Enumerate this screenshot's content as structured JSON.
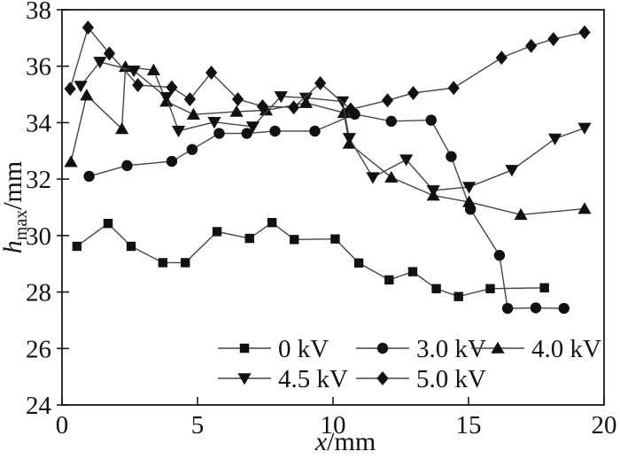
{
  "figure": {
    "background": "#ffffff",
    "axis_color": "#1a1a1a",
    "marker_color": "#111111",
    "line_color": "#444444"
  },
  "chart_data": {
    "type": "line",
    "title": "",
    "xlabel_variable": "x",
    "xlabel_unit": "/mm",
    "ylabel_variable": "h",
    "ylabel_subscript": "max",
    "ylabel_unit": "/mm",
    "xlim": [
      0,
      20
    ],
    "ylim": [
      24,
      38
    ],
    "x_ticks": [
      0,
      5,
      10,
      15,
      20
    ],
    "y_ticks": [
      24,
      26,
      28,
      30,
      32,
      34,
      36,
      38
    ],
    "grid": false,
    "legend_position": "inside lower center, two rows",
    "series": [
      {
        "name": "0 kV",
        "marker": "square",
        "points": [
          [
            0.55,
            29.62
          ],
          [
            1.7,
            30.43
          ],
          [
            2.55,
            29.62
          ],
          [
            3.72,
            29.04
          ],
          [
            4.55,
            29.04
          ],
          [
            5.72,
            30.14
          ],
          [
            6.92,
            29.9
          ],
          [
            7.75,
            30.46
          ],
          [
            8.57,
            29.86
          ],
          [
            10.08,
            29.88
          ],
          [
            10.95,
            29.03
          ],
          [
            12.07,
            28.43
          ],
          [
            12.94,
            28.72
          ],
          [
            13.81,
            28.12
          ],
          [
            14.63,
            27.84
          ],
          [
            15.8,
            28.12
          ],
          [
            17.8,
            28.15
          ]
        ]
      },
      {
        "name": "3.0 kV",
        "marker": "circle",
        "points": [
          [
            1.0,
            32.1
          ],
          [
            2.4,
            32.48
          ],
          [
            4.05,
            32.63
          ],
          [
            4.8,
            33.05
          ],
          [
            5.8,
            33.62
          ],
          [
            6.82,
            33.62
          ],
          [
            7.86,
            33.7
          ],
          [
            9.33,
            33.7
          ],
          [
            10.8,
            34.3
          ],
          [
            12.15,
            34.05
          ],
          [
            13.62,
            34.09
          ],
          [
            14.36,
            32.8
          ],
          [
            15.07,
            30.93
          ],
          [
            16.14,
            29.3
          ],
          [
            16.44,
            27.42
          ],
          [
            17.48,
            27.44
          ],
          [
            18.52,
            27.42
          ]
        ]
      },
      {
        "name": "4.0 kV",
        "marker": "triangle-up",
        "points": [
          [
            0.33,
            32.61
          ],
          [
            0.91,
            34.97
          ],
          [
            2.21,
            33.78
          ],
          [
            2.34,
            35.98
          ],
          [
            3.38,
            35.86
          ],
          [
            3.85,
            34.75
          ],
          [
            4.85,
            34.29
          ],
          [
            6.44,
            34.39
          ],
          [
            7.53,
            34.44
          ],
          [
            9.0,
            34.7
          ],
          [
            10.4,
            34.35
          ],
          [
            10.6,
            33.26
          ],
          [
            12.15,
            32.06
          ],
          [
            13.7,
            31.42
          ],
          [
            15.02,
            31.19
          ],
          [
            16.93,
            30.74
          ],
          [
            19.28,
            30.95
          ]
        ]
      },
      {
        "name": "4.5 kV",
        "marker": "triangle-down",
        "points": [
          [
            0.69,
            35.3
          ],
          [
            1.4,
            36.15
          ],
          [
            2.65,
            35.84
          ],
          [
            3.85,
            34.9
          ],
          [
            4.3,
            33.71
          ],
          [
            5.62,
            34.02
          ],
          [
            7.04,
            33.86
          ],
          [
            8.08,
            34.93
          ],
          [
            9.0,
            34.88
          ],
          [
            10.35,
            34.75
          ],
          [
            10.6,
            33.45
          ],
          [
            11.47,
            32.06
          ],
          [
            12.7,
            32.69
          ],
          [
            13.7,
            31.6
          ],
          [
            15.02,
            31.72
          ],
          [
            16.6,
            32.32
          ],
          [
            18.19,
            33.43
          ],
          [
            19.28,
            33.81
          ]
        ]
      },
      {
        "name": "5.0 kV",
        "marker": "diamond",
        "points": [
          [
            0.3,
            35.2
          ],
          [
            0.96,
            37.37
          ],
          [
            1.75,
            36.45
          ],
          [
            2.8,
            35.33
          ],
          [
            4.05,
            35.25
          ],
          [
            4.72,
            34.83
          ],
          [
            5.51,
            35.77
          ],
          [
            6.49,
            34.83
          ],
          [
            7.4,
            34.58
          ],
          [
            8.55,
            34.54
          ],
          [
            9.53,
            35.4
          ],
          [
            10.65,
            34.47
          ],
          [
            12.01,
            34.79
          ],
          [
            12.96,
            35.05
          ],
          [
            14.45,
            35.23
          ],
          [
            16.22,
            36.3
          ],
          [
            17.31,
            36.72
          ],
          [
            18.13,
            36.96
          ],
          [
            19.28,
            37.2
          ]
        ]
      }
    ],
    "legend_rows": [
      [
        "0 kV",
        "3.0 kV",
        "4.0 kV"
      ],
      [
        "4.5 kV",
        "5.0 kV"
      ]
    ]
  }
}
